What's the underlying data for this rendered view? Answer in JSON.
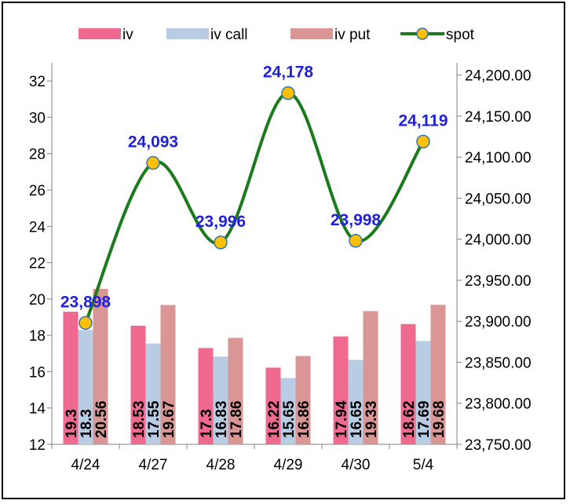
{
  "chart_data": {
    "type": "bar+line",
    "categories": [
      "4/24",
      "4/27",
      "4/28",
      "4/29",
      "4/30",
      "5/4"
    ],
    "series": [
      {
        "name": "iv",
        "type": "bar",
        "axis": "left",
        "color": "#f06a8f",
        "values": [
          19.3,
          18.53,
          17.3,
          16.22,
          17.94,
          18.62
        ],
        "labels": [
          "19.3",
          "18.53",
          "17.3",
          "16.22",
          "17.94",
          "18.62"
        ]
      },
      {
        "name": "iv call",
        "type": "bar",
        "axis": "left",
        "color": "#b8cce4",
        "values": [
          18.3,
          17.55,
          16.83,
          15.65,
          16.65,
          17.69
        ],
        "labels": [
          "18.3",
          "17.55",
          "16.83",
          "15.65",
          "16.65",
          "17.69"
        ]
      },
      {
        "name": "iv put",
        "type": "bar",
        "axis": "left",
        "color": "#d99694",
        "values": [
          20.56,
          19.67,
          17.86,
          16.86,
          19.33,
          19.68
        ],
        "labels": [
          "20.56",
          "19.67",
          "17.86",
          "16.86",
          "19.33",
          "19.68"
        ]
      },
      {
        "name": "spot",
        "type": "line",
        "axis": "right",
        "color": "#1b7a1b",
        "marker_color": "#ffc000",
        "marker_edge": "#2e75b6",
        "values": [
          23898,
          24093,
          23996,
          24178,
          23998,
          24119
        ],
        "labels": [
          "23,898",
          "24,093",
          "23,996",
          "24,178",
          "23,998",
          "24,119"
        ]
      }
    ],
    "y_left": {
      "min": 12,
      "max": 33,
      "ticks": [
        "12",
        "14",
        "16",
        "18",
        "20",
        "22",
        "24",
        "26",
        "28",
        "30",
        "32"
      ],
      "tick_values": [
        12,
        14,
        16,
        18,
        20,
        22,
        24,
        26,
        28,
        30,
        32
      ]
    },
    "y_right": {
      "min": 23750,
      "max": 24215,
      "ticks": [
        "23,750.00",
        "23,800.00",
        "23,850.00",
        "23,900.00",
        "23,950.00",
        "24,000.00",
        "24,050.00",
        "24,100.00",
        "24,150.00",
        "24,200.00"
      ],
      "tick_values": [
        23750,
        23800,
        23850,
        23900,
        23950,
        24000,
        24050,
        24100,
        24150,
        24200
      ]
    },
    "legend": {
      "position": "top",
      "entries": [
        "iv",
        "iv call",
        "iv put",
        "spot"
      ]
    },
    "title": "",
    "grid": false
  }
}
